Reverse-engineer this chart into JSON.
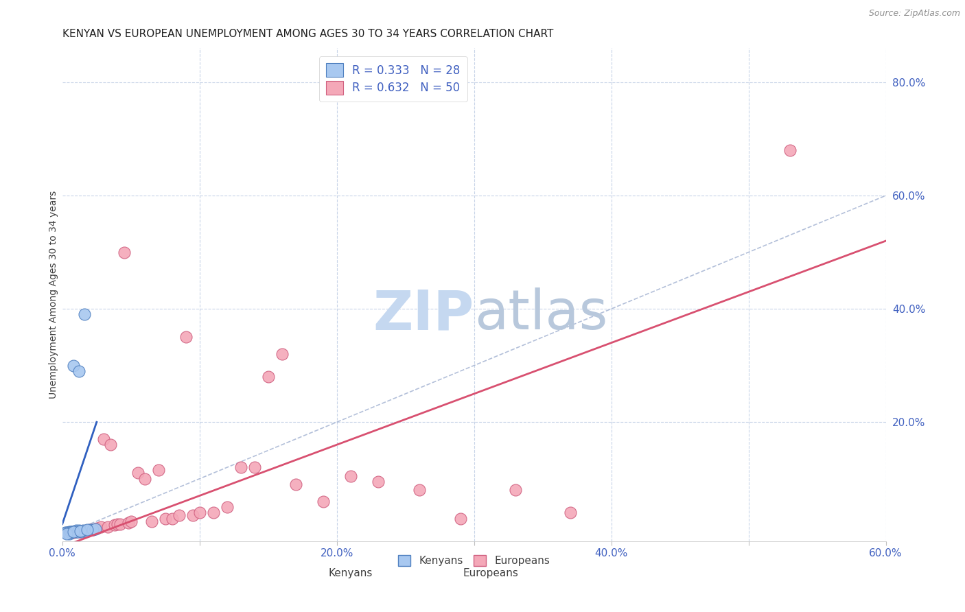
{
  "title": "KENYAN VS EUROPEAN UNEMPLOYMENT AMONG AGES 30 TO 34 YEARS CORRELATION CHART",
  "source": "Source: ZipAtlas.com",
  "ylabel": "Unemployment Among Ages 30 to 34 years",
  "xlim": [
    0.0,
    0.6
  ],
  "ylim": [
    -0.01,
    0.86
  ],
  "xticks": [
    0.0,
    0.1,
    0.2,
    0.3,
    0.4,
    0.5,
    0.6
  ],
  "xticklabels": [
    "0.0%",
    "",
    "20.0%",
    "",
    "40.0%",
    "",
    "60.0%"
  ],
  "yticks_right": [
    0.2,
    0.4,
    0.6,
    0.8
  ],
  "ytick_labels_right": [
    "20.0%",
    "40.0%",
    "60.0%",
    "80.0%"
  ],
  "kenyan_color": "#a8c8f0",
  "european_color": "#f4a8b8",
  "kenyan_edge_color": "#5080c0",
  "european_edge_color": "#d06080",
  "kenyan_line_color": "#3060c0",
  "european_line_color": "#d85070",
  "diagonal_color": "#a0b0d0",
  "R_kenyan": 0.333,
  "N_kenyan": 28,
  "R_european": 0.632,
  "N_european": 50,
  "kenyan_x": [
    0.002,
    0.003,
    0.004,
    0.005,
    0.005,
    0.006,
    0.006,
    0.007,
    0.007,
    0.008,
    0.009,
    0.01,
    0.01,
    0.011,
    0.012,
    0.013,
    0.014,
    0.015,
    0.016,
    0.018,
    0.02,
    0.022,
    0.024,
    0.003,
    0.008,
    0.012,
    0.013,
    0.018
  ],
  "kenyan_y": [
    0.005,
    0.005,
    0.004,
    0.006,
    0.003,
    0.007,
    0.005,
    0.007,
    0.006,
    0.3,
    0.008,
    0.007,
    0.009,
    0.007,
    0.009,
    0.008,
    0.007,
    0.009,
    0.39,
    0.008,
    0.01,
    0.01,
    0.011,
    0.003,
    0.006,
    0.29,
    0.008,
    0.01
  ],
  "european_x": [
    0.004,
    0.005,
    0.006,
    0.007,
    0.008,
    0.009,
    0.01,
    0.012,
    0.013,
    0.015,
    0.016,
    0.018,
    0.02,
    0.022,
    0.025,
    0.028,
    0.03,
    0.033,
    0.035,
    0.038,
    0.04,
    0.042,
    0.045,
    0.048,
    0.05,
    0.055,
    0.06,
    0.065,
    0.07,
    0.075,
    0.08,
    0.085,
    0.09,
    0.095,
    0.1,
    0.11,
    0.12,
    0.13,
    0.14,
    0.15,
    0.16,
    0.17,
    0.19,
    0.21,
    0.23,
    0.26,
    0.29,
    0.33,
    0.37,
    0.53
  ],
  "european_y": [
    0.005,
    0.004,
    0.005,
    0.005,
    0.005,
    0.006,
    0.006,
    0.007,
    0.007,
    0.008,
    0.008,
    0.009,
    0.01,
    0.01,
    0.012,
    0.015,
    0.17,
    0.015,
    0.16,
    0.018,
    0.02,
    0.02,
    0.5,
    0.022,
    0.025,
    0.11,
    0.1,
    0.025,
    0.115,
    0.03,
    0.03,
    0.035,
    0.35,
    0.035,
    0.04,
    0.04,
    0.05,
    0.12,
    0.12,
    0.28,
    0.32,
    0.09,
    0.06,
    0.105,
    0.095,
    0.08,
    0.03,
    0.08,
    0.04,
    0.68
  ],
  "watermark_color_zip": "#c5d8f0",
  "watermark_color_atlas": "#b8c8dc",
  "background_color": "#ffffff",
  "grid_color": "#c8d4e8",
  "title_fontsize": 11,
  "axis_label_fontsize": 10,
  "tick_fontsize": 11,
  "legend_fontsize": 12
}
